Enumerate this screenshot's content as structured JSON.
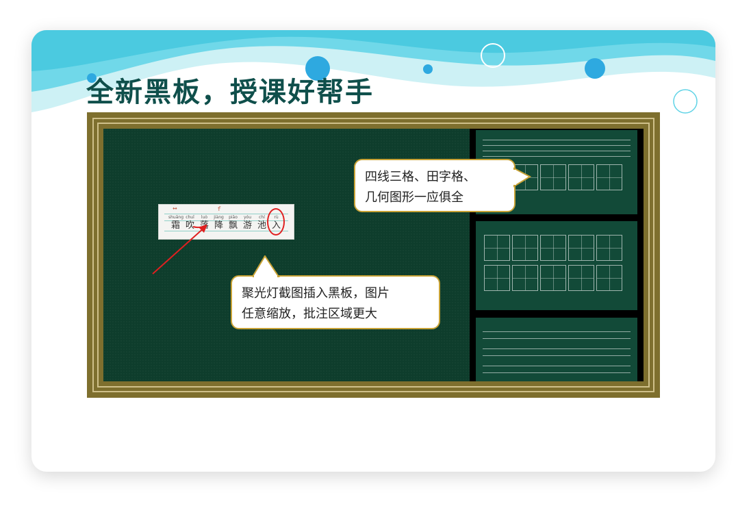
{
  "title": "全新黑板，授课好帮手",
  "callouts": {
    "spotlight": {
      "line1": "聚光灯截图插入黑板，图片",
      "line2": "任意缩放，批注区域更大"
    },
    "grids": {
      "line1": "四线三格、田字格、",
      "line2": "几何图形一应俱全"
    }
  },
  "snippet": {
    "hint_left": "↔",
    "hint_mid": "ｆ",
    "pinyin": [
      "shuāng",
      "chuī",
      "luò",
      "jiàng",
      "piāo",
      "yóu",
      "chí",
      "rù"
    ],
    "characters": [
      "霜",
      "吹",
      "落",
      "降",
      "飘",
      "游",
      "池",
      "入"
    ]
  },
  "colors": {
    "title": "#0f4f4b",
    "board": "#0e3d2c",
    "frame": "#7e6f2e",
    "bubble_border": "#c8a235",
    "annotation": "#e02020"
  }
}
